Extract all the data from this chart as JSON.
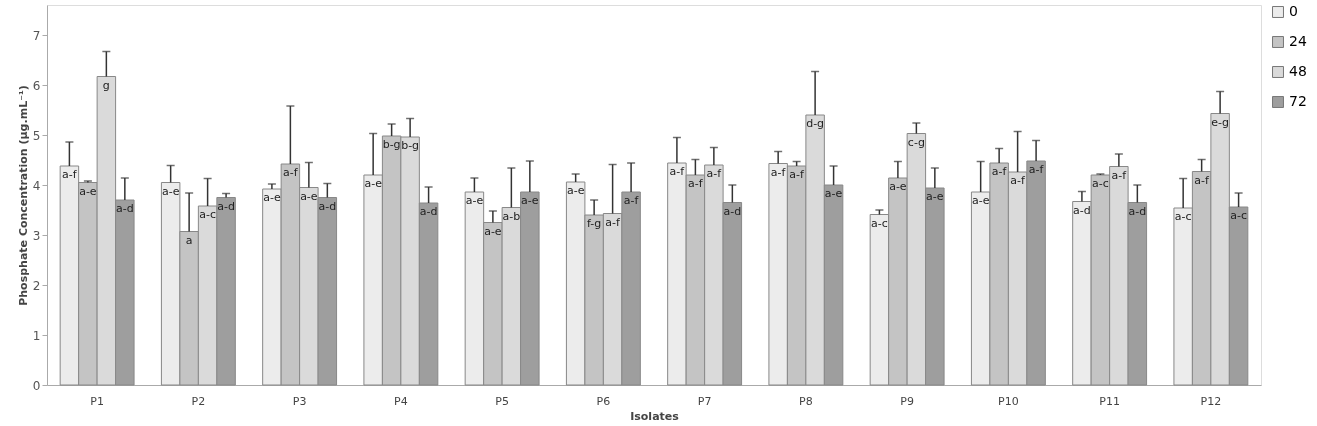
{
  "chart_data": {
    "type": "bar",
    "xlabel": "Isolates",
    "ylabel": "Phosphate Concentration (µg.mL⁻¹)",
    "categories": [
      "P1",
      "P2",
      "P3",
      "P4",
      "P5",
      "P6",
      "P7",
      "P8",
      "P9",
      "P10",
      "P11",
      "P12"
    ],
    "series": [
      {
        "name": "0",
        "color": "#ececec",
        "values": [
          4.38,
          4.05,
          3.92,
          4.2,
          3.86,
          4.06,
          4.44,
          4.43,
          3.41,
          3.86,
          3.67,
          3.54
        ],
        "errors": [
          [
            4.38,
            4.86
          ],
          [
            4.05,
            4.39
          ],
          [
            3.92,
            4.02
          ],
          [
            4.2,
            5.03
          ],
          [
            3.86,
            4.14
          ],
          [
            4.06,
            4.22
          ],
          [
            4.44,
            4.95
          ],
          [
            4.43,
            4.67
          ],
          [
            3.41,
            3.5
          ],
          [
            3.86,
            4.47
          ],
          [
            3.67,
            3.87
          ],
          [
            3.54,
            4.13
          ]
        ],
        "value_labels": [
          "a-f",
          "a-e",
          "a-e",
          "a-e",
          "a-e",
          "a-e",
          "a-f",
          "a-f",
          "a-c",
          "a-e",
          "a-d",
          "a-c"
        ]
      },
      {
        "name": "24",
        "color": "#c4c4c4",
        "values": [
          4.05,
          3.07,
          4.42,
          4.98,
          3.25,
          3.4,
          4.2,
          4.38,
          4.14,
          4.44,
          4.2,
          4.27
        ],
        "errors": [
          [
            4.05,
            4.08
          ],
          [
            3.07,
            3.84
          ],
          [
            4.42,
            5.58
          ],
          [
            4.98,
            5.22
          ],
          [
            3.25,
            3.48
          ],
          [
            3.4,
            3.7
          ],
          [
            4.2,
            4.51
          ],
          [
            4.38,
            4.47
          ],
          [
            4.14,
            4.47
          ],
          [
            4.44,
            4.73
          ],
          [
            4.2,
            4.22
          ],
          [
            4.27,
            4.51
          ]
        ],
        "value_labels": [
          "a-e",
          "a",
          "a-f",
          "b-g",
          "a-e",
          "f-g",
          "a-f",
          "a-f",
          "a-e",
          "a-f",
          "a-c",
          "a-f"
        ]
      },
      {
        "name": "48",
        "color": "#dadada",
        "values": [
          6.17,
          3.58,
          3.95,
          4.96,
          3.55,
          3.43,
          4.4,
          5.4,
          5.03,
          4.26,
          4.37,
          5.43
        ],
        "errors": [
          [
            6.17,
            6.67
          ],
          [
            3.58,
            4.13
          ],
          [
            3.95,
            4.45
          ],
          [
            4.96,
            5.33
          ],
          [
            3.55,
            4.34
          ],
          [
            3.43,
            4.41
          ],
          [
            4.4,
            4.75
          ],
          [
            5.4,
            6.27
          ],
          [
            5.03,
            5.24
          ],
          [
            4.26,
            5.07
          ],
          [
            4.37,
            4.62
          ],
          [
            5.43,
            5.87
          ]
        ],
        "value_labels": [
          "g",
          "a-c",
          "a-e",
          "b-g",
          "a-b",
          "a-f",
          "a-f",
          "d-g",
          "c-g",
          "a-f",
          "a-f",
          "e-g"
        ]
      },
      {
        "name": "72",
        "color": "#9e9e9e",
        "values": [
          3.7,
          3.75,
          3.75,
          3.64,
          3.86,
          3.86,
          3.65,
          4.0,
          3.94,
          4.48,
          3.65,
          3.56
        ],
        "errors": [
          [
            3.7,
            4.14
          ],
          [
            3.75,
            3.83
          ],
          [
            3.75,
            4.03
          ],
          [
            3.64,
            3.96
          ],
          [
            3.86,
            4.48
          ],
          [
            3.86,
            4.44
          ],
          [
            3.65,
            4.0
          ],
          [
            4.0,
            4.38
          ],
          [
            3.94,
            4.34
          ],
          [
            4.48,
            4.89
          ],
          [
            3.65,
            4.0
          ],
          [
            3.56,
            3.84
          ]
        ],
        "value_labels": [
          "a-d",
          "a-d",
          "a-d",
          "a-d",
          "a-e",
          "a-f",
          "a-d",
          "a-e",
          "a-e",
          "a-f",
          "a-d",
          "a-c"
        ]
      }
    ],
    "ylim": [
      0,
      7.6
    ],
    "yticks": [
      0,
      1,
      2,
      3,
      4,
      5,
      6,
      7
    ],
    "grid": false,
    "legend": "right"
  }
}
